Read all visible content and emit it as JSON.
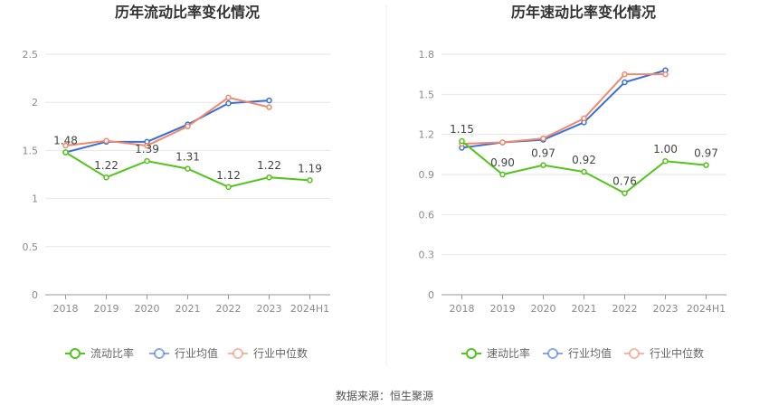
{
  "source_label": "数据来源：恒生聚源",
  "colors": {
    "main": "#52c41a",
    "industry_avg": "#3a6fd8",
    "industry_median": "#f08a6a",
    "grid": "#e6e6e6",
    "axis": "#999999"
  },
  "chart_data": [
    {
      "type": "line",
      "title": "历年流动比率变化情况",
      "x": [
        "2018",
        "2019",
        "2020",
        "2021",
        "2022",
        "2023",
        "2024H1"
      ],
      "ylim": [
        0,
        2.5
      ],
      "yticks": [
        "0",
        "0.5",
        "1",
        "1.5",
        "2",
        "2.5"
      ],
      "grid": true,
      "legend_position": "bottom",
      "series": [
        {
          "name": "流动比率",
          "values": [
            1.48,
            1.22,
            1.39,
            1.31,
            1.12,
            1.22,
            1.19
          ],
          "labels": [
            "1.48",
            "1.22",
            "1.39",
            "1.31",
            "1.12",
            "1.22",
            "1.19"
          ],
          "role": "main"
        },
        {
          "name": "行业均值",
          "values": [
            1.48,
            1.59,
            1.59,
            1.77,
            1.99,
            2.02,
            null
          ],
          "role": "industry_avg"
        },
        {
          "name": "行业中位数",
          "values": [
            1.55,
            1.6,
            1.55,
            1.75,
            2.05,
            1.95,
            null
          ],
          "role": "industry_median"
        }
      ]
    },
    {
      "type": "line",
      "title": "历年速动比率变化情况",
      "x": [
        "2018",
        "2019",
        "2020",
        "2021",
        "2022",
        "2023",
        "2024H1"
      ],
      "ylim": [
        0,
        1.8
      ],
      "yticks": [
        "0",
        "0.3",
        "0.6",
        "0.9",
        "1.2",
        "1.5",
        "1.8"
      ],
      "grid": true,
      "legend_position": "bottom",
      "series": [
        {
          "name": "速动比率",
          "values": [
            1.15,
            0.9,
            0.97,
            0.92,
            0.76,
            1.0,
            0.97
          ],
          "labels": [
            "1.15",
            "0.90",
            "0.97",
            "0.92",
            "0.76",
            "1.00",
            "0.97"
          ],
          "role": "main"
        },
        {
          "name": "行业均值",
          "values": [
            1.1,
            1.14,
            1.16,
            1.29,
            1.59,
            1.68,
            null
          ],
          "role": "industry_avg"
        },
        {
          "name": "行业中位数",
          "values": [
            1.13,
            1.14,
            1.17,
            1.32,
            1.65,
            1.65,
            null
          ],
          "role": "industry_median"
        }
      ]
    }
  ]
}
